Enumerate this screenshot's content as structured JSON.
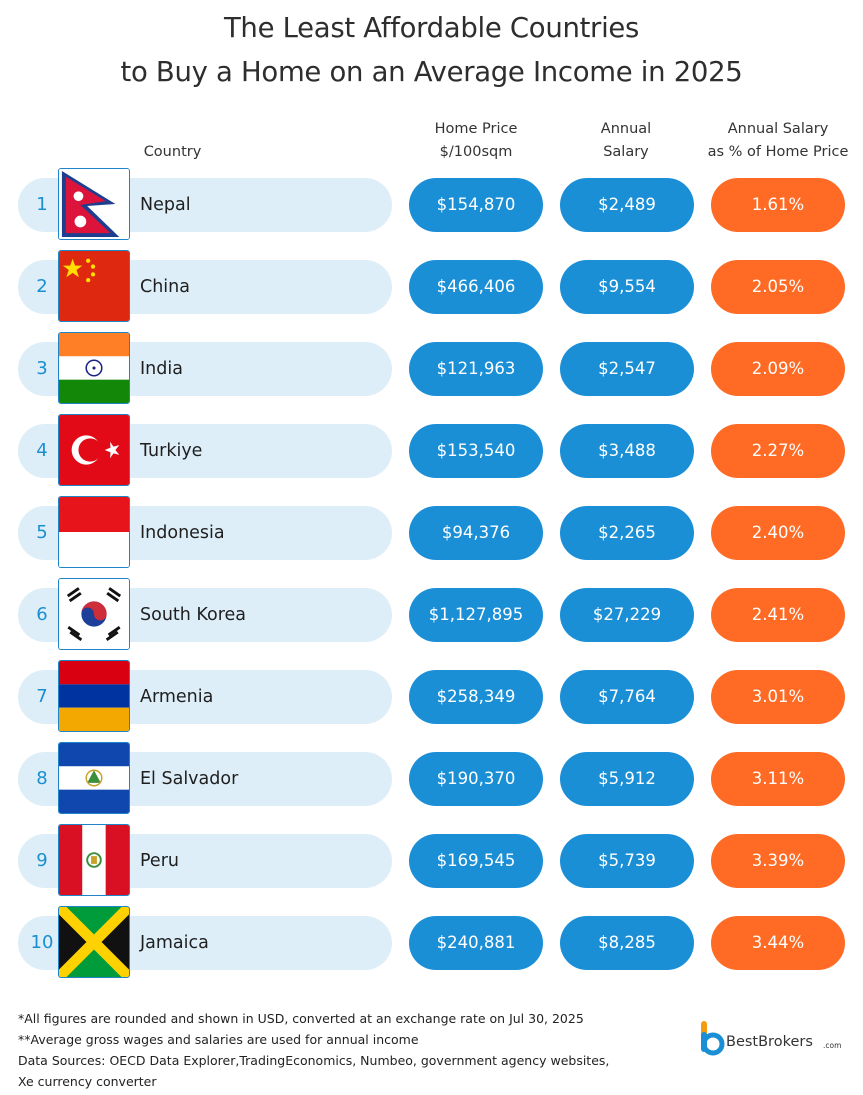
{
  "title": {
    "line1": "The Least Affordable Countries",
    "line2": "to Buy a Home on an Average Income in 2025"
  },
  "headers": {
    "country": "Country",
    "home_price_1": "Home Price",
    "home_price_2": "$/100sqm",
    "salary_1": "Annual",
    "salary_2": "Salary",
    "pct_1": "Annual Salary",
    "pct_2": "as % of Home Price"
  },
  "chart_data": {
    "type": "table",
    "columns": [
      "Country",
      "Home Price $/100sqm",
      "Annual Salary",
      "Annual Salary as % of Home Price"
    ],
    "rows": [
      {
        "rank": "1",
        "country": "Nepal",
        "flag": "nepal-flag",
        "home_price": "$154,870",
        "salary": "$2,489",
        "pct": "1.61%"
      },
      {
        "rank": "2",
        "country": "China",
        "flag": "china-flag",
        "home_price": "$466,406",
        "salary": "$9,554",
        "pct": "2.05%"
      },
      {
        "rank": "3",
        "country": "India",
        "flag": "india-flag",
        "home_price": "$121,963",
        "salary": "$2,547",
        "pct": "2.09%"
      },
      {
        "rank": "4",
        "country": "Turkiye",
        "flag": "turkiye-flag",
        "home_price": "$153,540",
        "salary": "$3,488",
        "pct": "2.27%"
      },
      {
        "rank": "5",
        "country": "Indonesia",
        "flag": "indonesia-flag",
        "home_price": "$94,376",
        "salary": "$2,265",
        "pct": "2.40%"
      },
      {
        "rank": "6",
        "country": "South Korea",
        "flag": "south-korea-flag",
        "home_price": "$1,127,895",
        "salary": "$27,229",
        "pct": "2.41%"
      },
      {
        "rank": "7",
        "country": "Armenia",
        "flag": "armenia-flag",
        "home_price": "$258,349",
        "salary": "$7,764",
        "pct": "3.01%"
      },
      {
        "rank": "8",
        "country": "El Salvador",
        "flag": "el-salvador-flag",
        "home_price": "$190,370",
        "salary": "$5,912",
        "pct": "3.11%"
      },
      {
        "rank": "9",
        "country": "Peru",
        "flag": "peru-flag",
        "home_price": "$169,545",
        "salary": "$5,739",
        "pct": "3.39%"
      },
      {
        "rank": "10",
        "country": "Jamaica",
        "flag": "jamaica-flag",
        "home_price": "$240,881",
        "salary": "$8,285",
        "pct": "3.44%"
      }
    ]
  },
  "colors": {
    "accent_blue": "#1b8fd6",
    "accent_orange": "#ff6b24",
    "row_bg": "#ddeef8"
  },
  "footnotes": [
    "*All figures are rounded and shown in USD, converted at an exchange rate on Jul 30, 2025",
    "**Average gross wages and salaries are used for annual income",
    "Data Sources: OECD Data Explorer,TradingEconomics, Numbeo, government agency websites,",
    "Xe currency converter"
  ],
  "logo": {
    "name": "BestBrokers",
    "suffix": ".com"
  }
}
